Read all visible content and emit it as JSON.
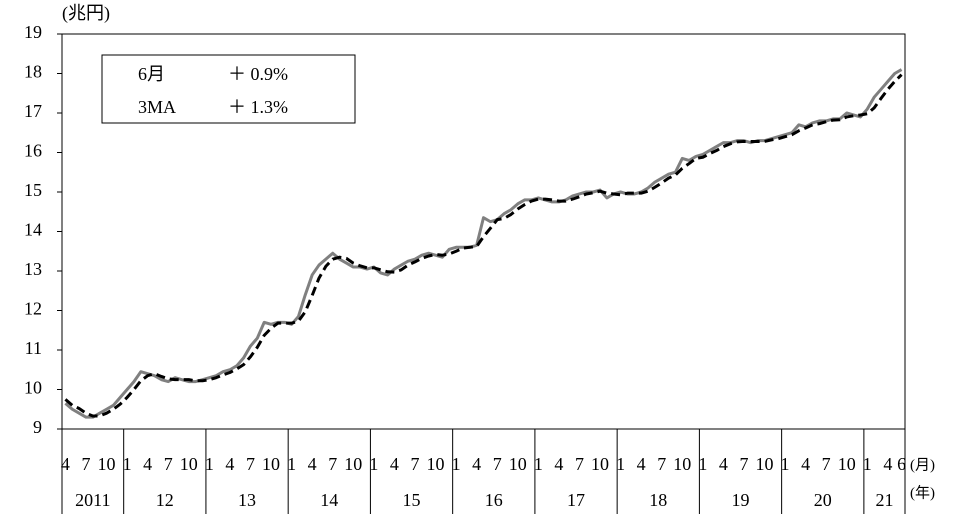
{
  "chart_data": {
    "type": "line",
    "y_label": "(兆円)",
    "x_unit_label": "(月)",
    "group_unit_label": "(年)",
    "annotations": [
      [
        "6月",
        "＋ 0.9%"
      ],
      [
        "3MA",
        "＋ 1.3%"
      ]
    ],
    "categories": [
      "4",
      null,
      null,
      "7",
      null,
      null,
      "10",
      null,
      null,
      "1",
      null,
      null,
      "4",
      null,
      null,
      "7",
      null,
      null,
      "10",
      null,
      null,
      "1",
      null,
      null,
      "4",
      null,
      null,
      "7",
      null,
      null,
      "10",
      null,
      null,
      "1",
      null,
      null,
      "4",
      null,
      null,
      "7",
      null,
      null,
      "10",
      null,
      null,
      "1",
      null,
      null,
      "4",
      null,
      null,
      "7",
      null,
      null,
      "10",
      null,
      null,
      "1",
      null,
      null,
      "4",
      null,
      null,
      "7",
      null,
      null,
      "10",
      null,
      null,
      "1",
      null,
      null,
      "4",
      null,
      null,
      "7",
      null,
      null,
      "10",
      null,
      null,
      "1",
      null,
      null,
      "4",
      null,
      null,
      "7",
      null,
      null,
      "10",
      null,
      null,
      "1",
      null,
      null,
      "4",
      null,
      null,
      "7",
      null,
      null,
      "10",
      null,
      null,
      "1",
      null,
      null,
      "4",
      null,
      null,
      "7",
      null,
      null,
      "10",
      null,
      null,
      "1",
      null,
      null,
      "4",
      null,
      "6"
    ],
    "x_groups": [
      {
        "label": "2011",
        "span": 9
      },
      {
        "label": "12",
        "span": 12
      },
      {
        "label": "13",
        "span": 12
      },
      {
        "label": "14",
        "span": 12
      },
      {
        "label": "15",
        "span": 12
      },
      {
        "label": "16",
        "span": 12
      },
      {
        "label": "17",
        "span": 12
      },
      {
        "label": "18",
        "span": 12
      },
      {
        "label": "19",
        "span": 12
      },
      {
        "label": "20",
        "span": 12
      },
      {
        "label": "21",
        "span": 6
      }
    ],
    "series": [
      {
        "color": "#808080",
        "dash": false,
        "values": [
          9.65,
          9.5,
          9.4,
          9.3,
          9.3,
          9.4,
          9.5,
          9.6,
          9.8,
          10.0,
          10.2,
          10.45,
          10.4,
          10.35,
          10.25,
          10.2,
          10.3,
          10.25,
          10.2,
          10.2,
          10.25,
          10.3,
          10.35,
          10.45,
          10.5,
          10.6,
          10.8,
          11.1,
          11.3,
          11.7,
          11.65,
          11.7,
          11.7,
          11.65,
          11.85,
          12.4,
          12.9,
          13.15,
          13.3,
          13.45,
          13.3,
          13.2,
          13.1,
          13.1,
          13.05,
          13.1,
          12.95,
          12.9,
          13.05,
          13.15,
          13.25,
          13.3,
          13.4,
          13.45,
          13.4,
          13.35,
          13.55,
          13.6,
          13.6,
          13.6,
          13.65,
          14.35,
          14.25,
          14.3,
          14.45,
          14.55,
          14.7,
          14.8,
          14.8,
          14.85,
          14.8,
          14.75,
          14.75,
          14.8,
          14.9,
          14.95,
          15.0,
          15.0,
          15.05,
          14.85,
          14.95,
          15.0,
          14.95,
          14.95,
          15.0,
          15.1,
          15.25,
          15.35,
          15.45,
          15.5,
          15.85,
          15.8,
          15.9,
          15.95,
          16.05,
          16.15,
          16.25,
          16.25,
          16.3,
          16.3,
          16.25,
          16.3,
          16.3,
          16.35,
          16.4,
          16.45,
          16.5,
          16.7,
          16.65,
          16.75,
          16.8,
          16.8,
          16.85,
          16.85,
          17.0,
          16.95,
          16.9,
          17.1,
          17.4,
          17.6,
          17.8,
          18.0,
          18.1
        ]
      },
      {
        "color": "#000000",
        "dash": true,
        "values": [
          9.75,
          9.6,
          9.52,
          9.4,
          9.33,
          9.33,
          9.4,
          9.5,
          9.63,
          9.8,
          10.0,
          10.22,
          10.35,
          10.4,
          10.33,
          10.27,
          10.25,
          10.25,
          10.25,
          10.22,
          10.22,
          10.25,
          10.3,
          10.37,
          10.43,
          10.52,
          10.63,
          10.83,
          11.07,
          11.37,
          11.55,
          11.68,
          11.68,
          11.68,
          11.73,
          11.97,
          12.38,
          12.82,
          13.12,
          13.3,
          13.35,
          13.32,
          13.2,
          13.13,
          13.08,
          13.08,
          13.03,
          12.98,
          12.97,
          13.03,
          13.15,
          13.23,
          13.32,
          13.38,
          13.42,
          13.4,
          13.43,
          13.5,
          13.58,
          13.6,
          13.62,
          13.87,
          14.08,
          14.3,
          14.33,
          14.43,
          14.57,
          14.68,
          14.77,
          14.82,
          14.82,
          14.8,
          14.77,
          14.77,
          14.82,
          14.88,
          14.95,
          14.98,
          15.02,
          14.97,
          14.95,
          14.93,
          14.97,
          14.97,
          14.97,
          15.02,
          15.12,
          15.23,
          15.35,
          15.43,
          15.6,
          15.72,
          15.85,
          15.88,
          15.97,
          16.05,
          16.15,
          16.22,
          16.27,
          16.28,
          16.28,
          16.28,
          16.28,
          16.32,
          16.35,
          16.4,
          16.45,
          16.55,
          16.62,
          16.7,
          16.73,
          16.78,
          16.82,
          16.83,
          16.9,
          16.93,
          16.95,
          16.98,
          17.13,
          17.37,
          17.6,
          17.8,
          17.97
        ]
      }
    ],
    "ylim": [
      9,
      19
    ],
    "yticks": [
      9,
      10,
      11,
      12,
      13,
      14,
      15,
      16,
      17,
      18,
      19
    ],
    "grid": false
  }
}
